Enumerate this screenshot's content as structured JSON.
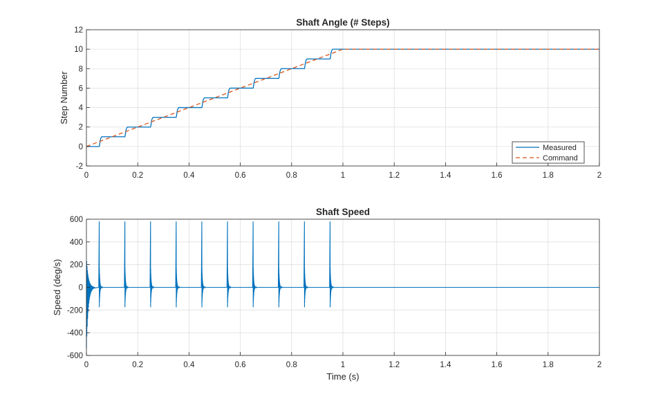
{
  "chart_data": [
    {
      "type": "line",
      "title": "Shaft Angle (# Steps)",
      "xlabel": "",
      "ylabel": "Step Number",
      "xlim": [
        0,
        2
      ],
      "ylim": [
        -2,
        12
      ],
      "xticks": [
        "0",
        "0.2",
        "0.4",
        "0.6",
        "0.8",
        "1",
        "1.2",
        "1.4",
        "1.6",
        "1.8",
        "2"
      ],
      "yticks": [
        "-2",
        "0",
        "2",
        "4",
        "6",
        "8",
        "10",
        "12"
      ],
      "grid": true,
      "legend": "bottom-right",
      "series": [
        {
          "name": "Measured",
          "color": "#0072BD",
          "style": "solid",
          "x": [
            0,
            0.05,
            0.06,
            0.15,
            0.16,
            0.25,
            0.26,
            0.35,
            0.36,
            0.45,
            0.46,
            0.55,
            0.56,
            0.65,
            0.66,
            0.75,
            0.76,
            0.85,
            0.86,
            0.95,
            0.96,
            2
          ],
          "y": [
            0,
            0,
            1,
            1,
            2,
            2,
            3,
            3,
            4,
            4,
            5,
            5,
            6,
            6,
            7,
            7,
            8,
            8,
            9,
            9,
            10,
            10
          ]
        },
        {
          "name": "Command",
          "color": "#D95319",
          "style": "dashed",
          "x": [
            0,
            1,
            2
          ],
          "y": [
            0,
            10,
            10
          ]
        }
      ]
    },
    {
      "type": "line",
      "title": "Shaft Speed",
      "xlabel": "Time (s)",
      "ylabel": "Speed (deg/s)",
      "xlim": [
        0,
        2
      ],
      "ylim": [
        -600,
        600
      ],
      "xticks": [
        "0",
        "0.2",
        "0.4",
        "0.6",
        "0.8",
        "1",
        "1.2",
        "1.4",
        "1.6",
        "1.8",
        "2"
      ],
      "yticks": [
        "-600",
        "-400",
        "-200",
        "0",
        "200",
        "400",
        "600"
      ],
      "grid": true,
      "series": [
        {
          "color": "#0072BD",
          "style": "solid",
          "pulse_times": [
            0.05,
            0.15,
            0.25,
            0.35,
            0.45,
            0.55,
            0.65,
            0.75,
            0.85,
            0.95
          ],
          "pulse_peak": 580,
          "initial_min": -540,
          "initial_max": 260
        }
      ]
    }
  ]
}
